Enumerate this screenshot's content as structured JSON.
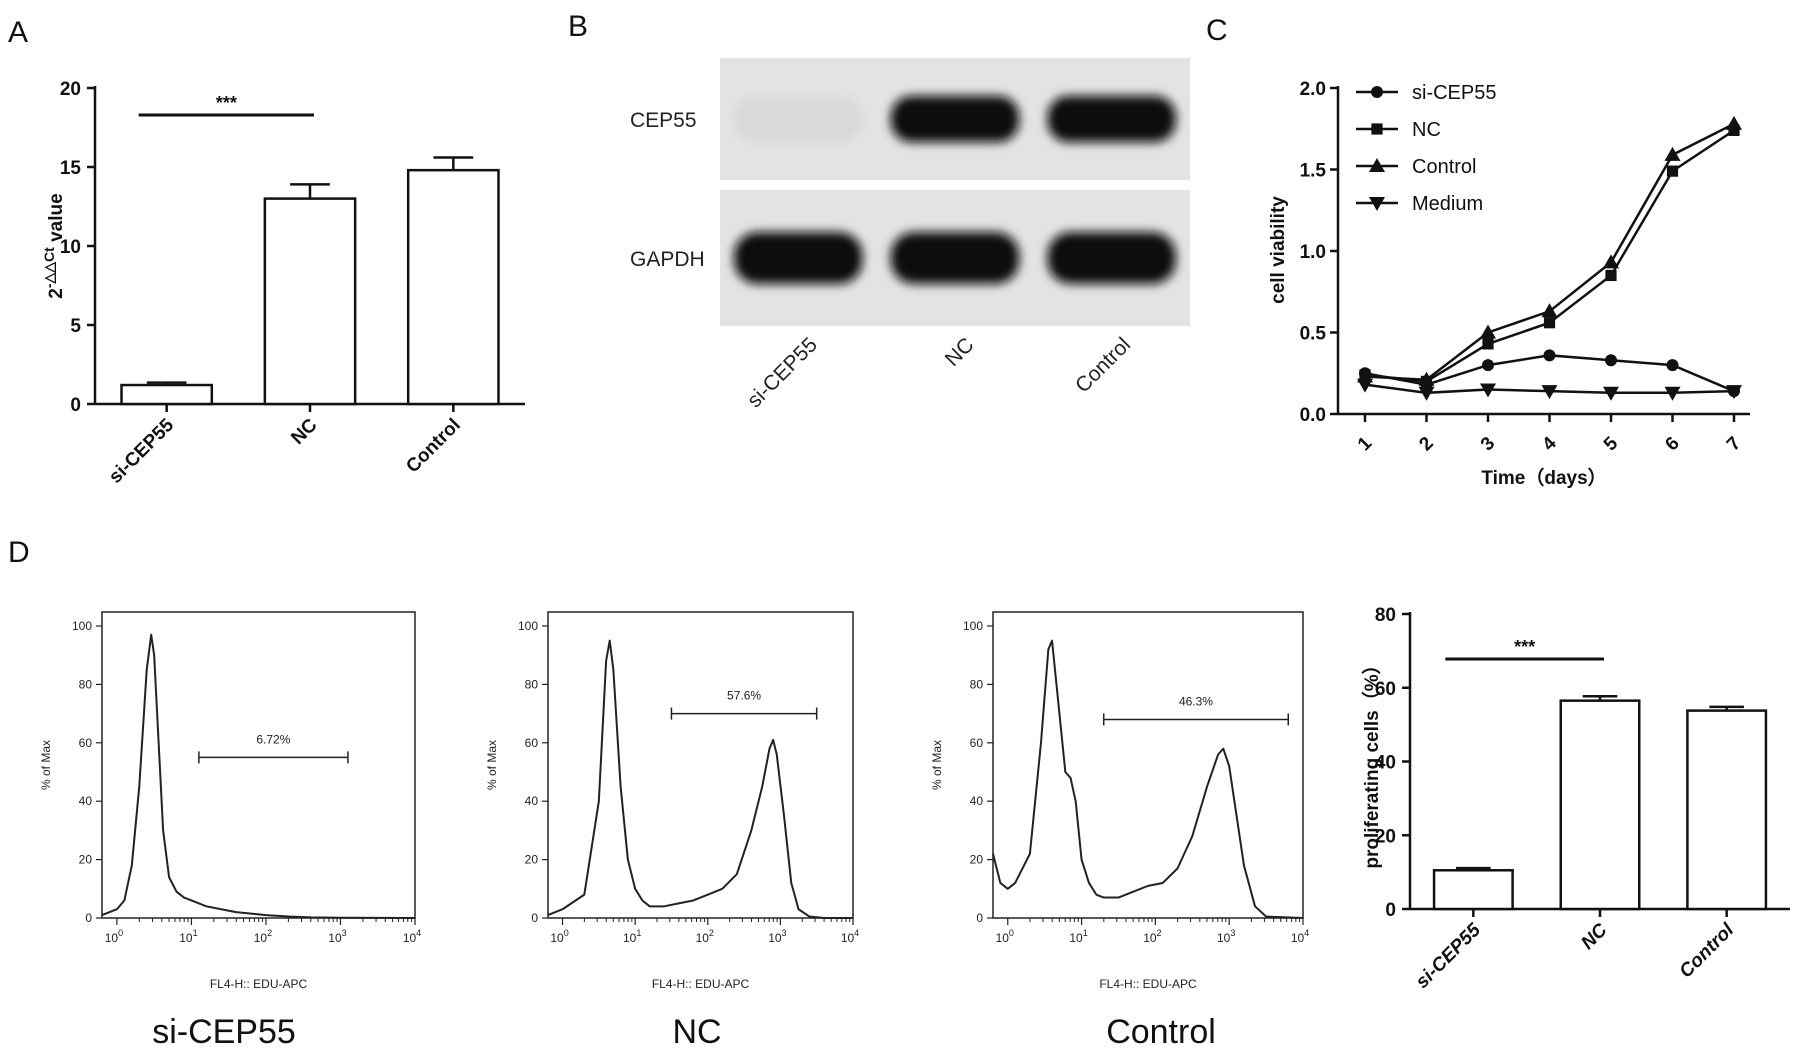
{
  "panel_letters": [
    "A",
    "B",
    "C",
    "D"
  ],
  "chart_data": [
    {
      "panel": "A",
      "type": "bar",
      "categories": [
        "si-CEP55",
        "NC",
        "Control"
      ],
      "values": [
        1.2,
        13.0,
        14.8
      ],
      "errors": [
        0.15,
        0.9,
        0.8
      ],
      "ylabel_base": "2",
      "ylabel_exp": "-△△Ct",
      "ylabel_tail": " value",
      "ylim": [
        0,
        20
      ],
      "yticks": [
        "0",
        "5",
        "10",
        "15",
        "20"
      ],
      "significance": "***"
    },
    {
      "panel": "B",
      "type": "table",
      "bands": [
        "CEP55",
        "GAPDH"
      ],
      "lanes": [
        "si-CEP55",
        "NC",
        "Control"
      ],
      "intensity": {
        "CEP55": [
          0.06,
          1.0,
          1.0
        ],
        "GAPDH": [
          1.0,
          1.0,
          1.0
        ]
      }
    },
    {
      "panel": "C",
      "type": "line",
      "xlabel": "Time（days）",
      "ylabel": "cell viability",
      "x": [
        1,
        2,
        3,
        4,
        5,
        6,
        7
      ],
      "xticks": [
        "1",
        "2",
        "3",
        "4",
        "5",
        "6",
        "7"
      ],
      "ylim": [
        0,
        2.0
      ],
      "yticks": [
        "0.0",
        "0.5",
        "1.0",
        "1.5",
        "2.0"
      ],
      "legend_position": "top-left",
      "series": [
        {
          "name": "si-CEP55",
          "marker": "circle",
          "values": [
            0.25,
            0.18,
            0.3,
            0.36,
            0.33,
            0.3,
            0.14
          ]
        },
        {
          "name": "NC",
          "marker": "square",
          "values": [
            0.24,
            0.2,
            0.43,
            0.56,
            0.85,
            1.49,
            1.74
          ]
        },
        {
          "name": "Control",
          "marker": "triangle-up",
          "values": [
            0.23,
            0.21,
            0.5,
            0.63,
            0.93,
            1.59,
            1.78
          ]
        },
        {
          "name": "Medium",
          "marker": "triangle-down",
          "values": [
            0.18,
            0.13,
            0.15,
            0.14,
            0.13,
            0.13,
            0.14
          ]
        }
      ]
    },
    {
      "panel": "D",
      "type": "area",
      "xlabel": "FL4-H:: EDU-APC",
      "ylabel": "% of Max",
      "xticks": [
        "0",
        "1",
        "2",
        "3",
        "4"
      ],
      "tick_base": "10",
      "yticks": [
        "0",
        "20",
        "40",
        "60",
        "80",
        "100"
      ],
      "ylim": [
        0,
        100
      ],
      "histograms": [
        {
          "caption": "si-CEP55",
          "gate_label": "6.72%",
          "gate": [
            1.1,
            3.1
          ],
          "gate_y": 55,
          "points": [
            [
              -0.2,
              1
            ],
            [
              0.0,
              3
            ],
            [
              0.1,
              6
            ],
            [
              0.2,
              18
            ],
            [
              0.3,
              45
            ],
            [
              0.4,
              85
            ],
            [
              0.46,
              97
            ],
            [
              0.5,
              90
            ],
            [
              0.56,
              60
            ],
            [
              0.62,
              30
            ],
            [
              0.7,
              14
            ],
            [
              0.8,
              9
            ],
            [
              0.9,
              7
            ],
            [
              1.0,
              6
            ],
            [
              1.2,
              4
            ],
            [
              1.4,
              3
            ],
            [
              1.6,
              2
            ],
            [
              1.8,
              1.5
            ],
            [
              2.0,
              1
            ],
            [
              2.3,
              0.5
            ],
            [
              2.6,
              0.2
            ],
            [
              3.0,
              0.1
            ],
            [
              4.0,
              0
            ]
          ]
        },
        {
          "caption": "NC",
          "gate_label": "57.6%",
          "gate": [
            1.5,
            3.5
          ],
          "gate_y": 70,
          "points": [
            [
              -0.2,
              1
            ],
            [
              0.0,
              3
            ],
            [
              0.3,
              8
            ],
            [
              0.5,
              40
            ],
            [
              0.6,
              88
            ],
            [
              0.65,
              95
            ],
            [
              0.7,
              85
            ],
            [
              0.8,
              45
            ],
            [
              0.9,
              20
            ],
            [
              1.0,
              10
            ],
            [
              1.1,
              6
            ],
            [
              1.2,
              4
            ],
            [
              1.4,
              4
            ],
            [
              1.6,
              5
            ],
            [
              1.8,
              6
            ],
            [
              2.0,
              8
            ],
            [
              2.2,
              10
            ],
            [
              2.4,
              15
            ],
            [
              2.6,
              30
            ],
            [
              2.75,
              45
            ],
            [
              2.85,
              58
            ],
            [
              2.9,
              61
            ],
            [
              2.95,
              56
            ],
            [
              3.05,
              35
            ],
            [
              3.15,
              12
            ],
            [
              3.25,
              3
            ],
            [
              3.4,
              0.5
            ],
            [
              3.6,
              0
            ],
            [
              4.0,
              0
            ]
          ]
        },
        {
          "caption": "Control",
          "gate_label": "46.3%",
          "gate": [
            1.3,
            3.8
          ],
          "gate_y": 68,
          "points": [
            [
              -0.2,
              22
            ],
            [
              -0.1,
              12
            ],
            [
              0.0,
              10
            ],
            [
              0.1,
              12
            ],
            [
              0.3,
              22
            ],
            [
              0.45,
              60
            ],
            [
              0.55,
              92
            ],
            [
              0.6,
              95
            ],
            [
              0.68,
              75
            ],
            [
              0.78,
              50
            ],
            [
              0.85,
              48
            ],
            [
              0.92,
              40
            ],
            [
              1.0,
              20
            ],
            [
              1.1,
              12
            ],
            [
              1.2,
              8
            ],
            [
              1.3,
              7
            ],
            [
              1.5,
              7
            ],
            [
              1.7,
              9
            ],
            [
              1.9,
              11
            ],
            [
              2.1,
              12
            ],
            [
              2.3,
              17
            ],
            [
              2.5,
              28
            ],
            [
              2.7,
              45
            ],
            [
              2.85,
              56
            ],
            [
              2.92,
              58
            ],
            [
              3.0,
              52
            ],
            [
              3.1,
              35
            ],
            [
              3.2,
              18
            ],
            [
              3.35,
              4
            ],
            [
              3.5,
              0.5
            ],
            [
              4.0,
              0
            ]
          ]
        }
      ]
    },
    {
      "panel": "D-bar",
      "type": "bar",
      "categories": [
        "si-CEP55",
        "NC",
        "Control"
      ],
      "values": [
        10.5,
        56.5,
        53.8
      ],
      "errors": [
        0.6,
        1.2,
        1.0
      ],
      "ylabel": "proliferating cells（%）",
      "ylim": [
        0,
        80
      ],
      "yticks": [
        "0",
        "20",
        "40",
        "60",
        "80"
      ],
      "significance": "***"
    }
  ]
}
